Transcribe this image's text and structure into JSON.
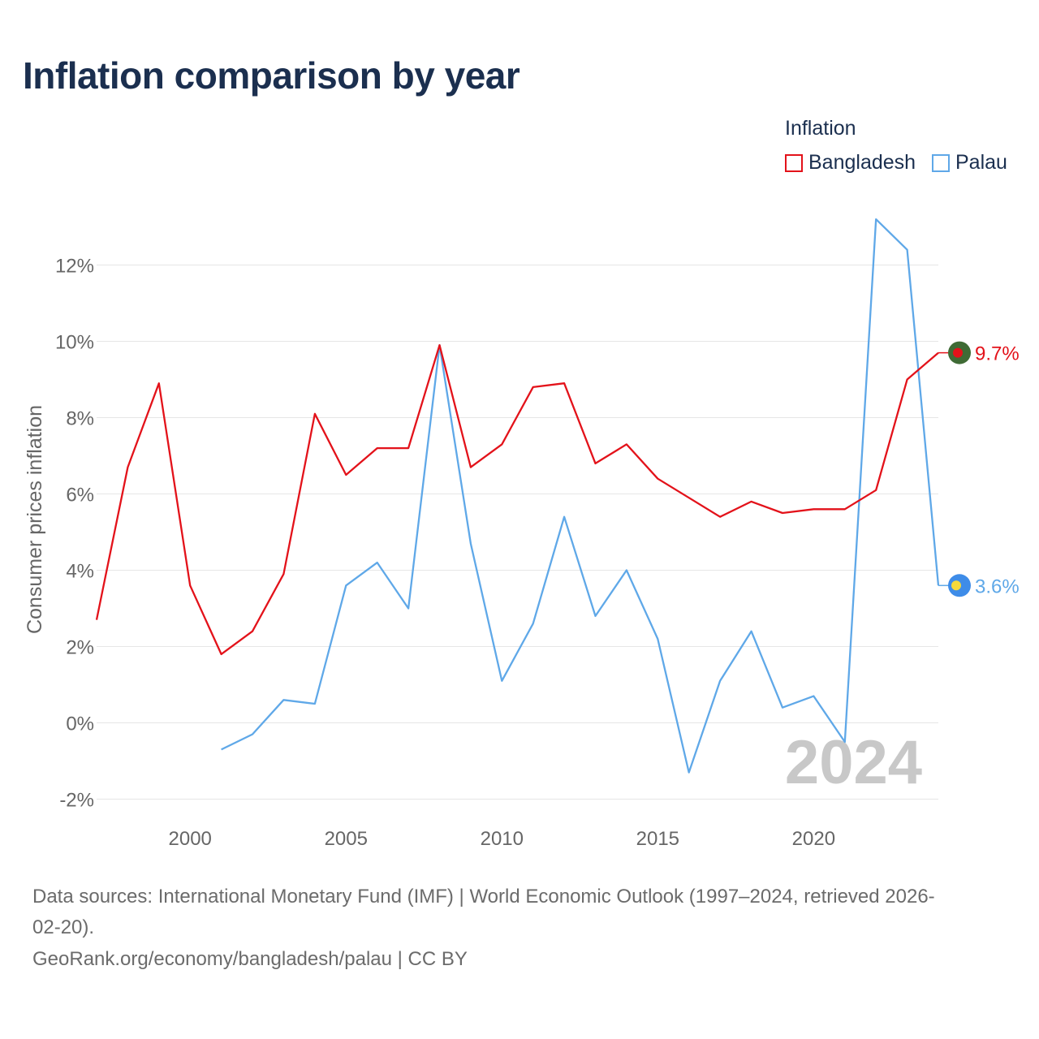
{
  "title": "Inflation comparison by year",
  "legend": {
    "title": "Inflation",
    "items": [
      {
        "label": "Bangladesh",
        "color": "#e3121a"
      },
      {
        "label": "Palau",
        "color": "#5fa8e8"
      }
    ]
  },
  "chart_data": {
    "type": "line",
    "title": "Inflation comparison by year",
    "xlabel": "",
    "ylabel": "Consumer prices inflation",
    "x": [
      1997,
      1998,
      1999,
      2000,
      2001,
      2002,
      2003,
      2004,
      2005,
      2006,
      2007,
      2008,
      2009,
      2010,
      2011,
      2012,
      2013,
      2014,
      2015,
      2016,
      2017,
      2018,
      2019,
      2020,
      2021,
      2022,
      2023,
      2024
    ],
    "xlim": [
      1997,
      2024
    ],
    "ylim": [
      -2.5,
      13.5
    ],
    "xticks": [
      2000,
      2005,
      2010,
      2015,
      2020
    ],
    "xtick_labels": [
      "2000",
      "2005",
      "2010",
      "2015",
      "2020"
    ],
    "yticks": [
      -2,
      0,
      2,
      4,
      6,
      8,
      10,
      12
    ],
    "ytick_labels": [
      "-2%",
      "0%",
      "2%",
      "4%",
      "6%",
      "8%",
      "10%",
      "12%"
    ],
    "series": [
      {
        "name": "Bangladesh",
        "color": "#e3121a",
        "values": [
          2.7,
          6.7,
          8.9,
          3.6,
          1.8,
          2.4,
          3.9,
          8.1,
          6.5,
          7.2,
          7.2,
          9.9,
          6.7,
          7.3,
          8.8,
          8.9,
          6.8,
          7.3,
          6.4,
          5.9,
          5.4,
          5.8,
          5.5,
          5.6,
          5.6,
          6.1,
          9.0,
          9.7
        ]
      },
      {
        "name": "Palau",
        "color": "#5fa8e8",
        "values": [
          null,
          null,
          null,
          null,
          -0.7,
          -0.3,
          0.6,
          0.5,
          3.6,
          4.2,
          3.0,
          9.9,
          4.7,
          1.1,
          2.6,
          5.4,
          2.8,
          4.0,
          2.2,
          -1.3,
          1.1,
          2.4,
          0.4,
          0.7,
          -0.5,
          13.2,
          12.4,
          3.6
        ]
      }
    ],
    "end_labels": [
      "9.7%",
      "3.6%"
    ],
    "year_watermark": "2024",
    "grid": true
  },
  "footer": {
    "line1": "Data sources: International Monetary Fund (IMF) | World Economic Outlook (1997–2024, retrieved 2026-",
    "line2": "02-20).",
    "line3": "GeoRank.org/economy/bangladesh/palau | CC BY"
  }
}
